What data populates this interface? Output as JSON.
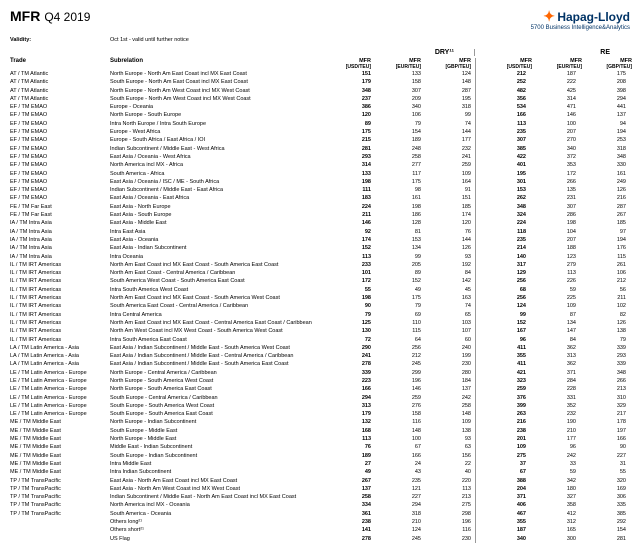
{
  "header": {
    "code": "MFR",
    "quarter": "Q4 2019",
    "company": "Hapag-Lloyd",
    "division": "5700 Business Intelligence&Analytics"
  },
  "validity": {
    "label": "Validity:",
    "text": "Oct 1st - valid until further notice"
  },
  "tableHeader": {
    "trade": "Trade",
    "subrelation": "Subrelation",
    "groups": [
      {
        "title": "DRY¹¹",
        "cols": [
          {
            "h": "MFR",
            "u": "[USD/TEU]"
          },
          {
            "h": "MFR",
            "u": "[EUR/TEU]"
          },
          {
            "h": "MFR",
            "u": "[GBP/TEU]"
          }
        ]
      },
      {
        "title": "RE",
        "cols": [
          {
            "h": "MFR",
            "u": "[USD/TEU]"
          },
          {
            "h": "MFR",
            "u": "[EUR/TEU]"
          },
          {
            "h": "MFR",
            "u": "[GBP/TEU]"
          }
        ]
      }
    ]
  },
  "rows": [
    {
      "t": "AT / TM Atlantic",
      "s": "North Europe - North Am East Coast incl MX East Coast",
      "d": [
        "151",
        "133",
        "124"
      ],
      "r": [
        "212",
        "187",
        "175"
      ]
    },
    {
      "t": "AT / TM Atlantic",
      "s": "South Europe - North Am East Coast incl MX East Coast",
      "d": [
        "179",
        "158",
        "148"
      ],
      "r": [
        "252",
        "222",
        "208"
      ]
    },
    {
      "t": "AT / TM Atlantic",
      "s": "North Europe - North Am West Coast incl MX West Coast",
      "d": [
        "348",
        "307",
        "287"
      ],
      "r": [
        "482",
        "425",
        "398"
      ]
    },
    {
      "t": "AT / TM Atlantic",
      "s": "South Europe - North Am West Coast incl MX West Coast",
      "d": [
        "237",
        "209",
        "195"
      ],
      "r": [
        "356",
        "314",
        "294"
      ]
    },
    {
      "t": "EF / TM EMAO",
      "s": "Europe - Oceania",
      "d": [
        "386",
        "340",
        "318"
      ],
      "r": [
        "534",
        "471",
        "441"
      ]
    },
    {
      "t": "EF / TM EMAO",
      "s": "North Europe - South Europe",
      "d": [
        "120",
        "106",
        "99"
      ],
      "r": [
        "166",
        "146",
        "137"
      ]
    },
    {
      "t": "EF / TM EMAO",
      "s": "Intra North Europe / Intra South Europe",
      "d": [
        "89",
        "79",
        "74"
      ],
      "r": [
        "113",
        "100",
        "94"
      ]
    },
    {
      "t": "EF / TM EMAO",
      "s": "Europe - West Africa",
      "d": [
        "175",
        "154",
        "144"
      ],
      "r": [
        "235",
        "207",
        "194"
      ]
    },
    {
      "t": "EF / TM EMAO",
      "s": "Europe - South Africa / East Africa / IOI",
      "d": [
        "215",
        "189",
        "177"
      ],
      "r": [
        "307",
        "270",
        "253"
      ]
    },
    {
      "t": "EF / TM EMAO",
      "s": "Indian Subcontinent / Middle East - West Africa",
      "d": [
        "281",
        "248",
        "232"
      ],
      "r": [
        "385",
        "340",
        "318"
      ]
    },
    {
      "t": "EF / TM EMAO",
      "s": "East Asia / Oceania - West Africa",
      "d": [
        "293",
        "258",
        "241"
      ],
      "r": [
        "422",
        "372",
        "348"
      ]
    },
    {
      "t": "EF / TM EMAO",
      "s": "North America incl MX - Africa",
      "d": [
        "314",
        "277",
        "259"
      ],
      "r": [
        "401",
        "353",
        "330"
      ]
    },
    {
      "t": "EF / TM EMAO",
      "s": "South America - Africa",
      "d": [
        "133",
        "117",
        "109"
      ],
      "r": [
        "195",
        "172",
        "161"
      ]
    },
    {
      "t": "EF / TM EMAO",
      "s": "East Asia / Oceania / ISC / ME - South Africa",
      "d": [
        "198",
        "175",
        "164"
      ],
      "r": [
        "301",
        "266",
        "249"
      ]
    },
    {
      "t": "EF / TM EMAO",
      "s": "Indian Subcontinent / Middle East - East Africa",
      "d": [
        "111",
        "98",
        "91"
      ],
      "r": [
        "153",
        "135",
        "126"
      ]
    },
    {
      "t": "EF / TM EMAO",
      "s": "East Asia / Oceania - East Africa",
      "d": [
        "183",
        "161",
        "151"
      ],
      "r": [
        "262",
        "231",
        "216"
      ]
    },
    {
      "t": "FE / TM Far East",
      "s": "East Asia - North Europe",
      "d": [
        "224",
        "198",
        "185"
      ],
      "r": [
        "348",
        "307",
        "287"
      ]
    },
    {
      "t": "FE / TM Far East",
      "s": "East Asia - South Europe",
      "d": [
        "211",
        "186",
        "174"
      ],
      "r": [
        "324",
        "286",
        "267"
      ]
    },
    {
      "t": "IA / TM Intra Asia",
      "s": "East Asia - Middle East",
      "d": [
        "146",
        "128",
        "120"
      ],
      "r": [
        "224",
        "198",
        "185"
      ]
    },
    {
      "t": "IA / TM Intra Asia",
      "s": "Intra East Asia",
      "d": [
        "92",
        "81",
        "76"
      ],
      "r": [
        "118",
        "104",
        "97"
      ]
    },
    {
      "t": "IA / TM Intra Asia",
      "s": "East Asia - Oceania",
      "d": [
        "174",
        "153",
        "144"
      ],
      "r": [
        "235",
        "207",
        "194"
      ]
    },
    {
      "t": "IA / TM Intra Asia",
      "s": "East Asia - Indian Subcontinent",
      "d": [
        "152",
        "134",
        "126"
      ],
      "r": [
        "214",
        "188",
        "176"
      ]
    },
    {
      "t": "IA / TM Intra Asia",
      "s": "Intra Oceania",
      "d": [
        "113",
        "99",
        "93"
      ],
      "r": [
        "140",
        "123",
        "115"
      ]
    },
    {
      "t": "IL / TM IRT Americas",
      "s": "North Am East Coast incl MX East Coast - South America East Coast",
      "d": [
        "233",
        "205",
        "192"
      ],
      "r": [
        "317",
        "279",
        "261"
      ]
    },
    {
      "t": "IL / TM IRT Americas",
      "s": "North Am East Coast - Central America / Caribbean",
      "d": [
        "101",
        "89",
        "84"
      ],
      "r": [
        "129",
        "113",
        "106"
      ]
    },
    {
      "t": "IL / TM IRT Americas",
      "s": "South America West Coast - South America East Coast",
      "d": [
        "172",
        "152",
        "142"
      ],
      "r": [
        "256",
        "226",
        "212"
      ]
    },
    {
      "t": "IL / TM IRT Americas",
      "s": "Intra South America West Coast",
      "d": [
        "55",
        "49",
        "45"
      ],
      "r": [
        "68",
        "59",
        "56"
      ]
    },
    {
      "t": "IL / TM IRT Americas",
      "s": "North Am East Coast incl MX East Coast - South America West Coast",
      "d": [
        "198",
        "175",
        "163"
      ],
      "r": [
        "256",
        "225",
        "211"
      ]
    },
    {
      "t": "IL / TM IRT Americas",
      "s": "South America East Coast - Central America / Caribbean",
      "d": [
        "90",
        "79",
        "74"
      ],
      "r": [
        "124",
        "109",
        "102"
      ]
    },
    {
      "t": "IL / TM IRT Americas",
      "s": "Intra Central America",
      "d": [
        "79",
        "69",
        "65"
      ],
      "r": [
        "99",
        "87",
        "82"
      ]
    },
    {
      "t": "IL / TM IRT Americas",
      "s": "North Am East Coast incl MX East Coast - Central America East Coast / Caribbean",
      "d": [
        "125",
        "110",
        "103"
      ],
      "r": [
        "152",
        "134",
        "126"
      ]
    },
    {
      "t": "IL / TM IRT Americas",
      "s": "North Am West Coast incl MX West Coast - South America West Coast",
      "d": [
        "130",
        "115",
        "107"
      ],
      "r": [
        "167",
        "147",
        "138"
      ]
    },
    {
      "t": "IL / TM IRT Americas",
      "s": "Intra South America East Coast",
      "d": [
        "72",
        "64",
        "60"
      ],
      "r": [
        "96",
        "84",
        "79"
      ]
    },
    {
      "t": "LA / TM Latin America - Asia",
      "s": "East Asia / Indian Subcontinent / Middle East - South America West Coast",
      "d": [
        "290",
        "256",
        "240"
      ],
      "r": [
        "411",
        "362",
        "339"
      ]
    },
    {
      "t": "LA / TM Latin America - Asia",
      "s": "East Asia / Indian Subcontinent / Middle East - Central America / Caribbean",
      "d": [
        "241",
        "212",
        "199"
      ],
      "r": [
        "355",
        "313",
        "293"
      ]
    },
    {
      "t": "LA / TM Latin America - Asia",
      "s": "East Asia / Indian Subcontinent / Middle East - South America East Coast",
      "d": [
        "278",
        "245",
        "230"
      ],
      "r": [
        "411",
        "362",
        "339"
      ]
    },
    {
      "t": "LE / TM Latin America - Europe",
      "s": "North Europe - Central America / Caribbean",
      "d": [
        "339",
        "299",
        "280"
      ],
      "r": [
        "421",
        "371",
        "348"
      ]
    },
    {
      "t": "LE / TM Latin America - Europe",
      "s": "North Europe - South America West Coast",
      "d": [
        "223",
        "196",
        "184"
      ],
      "r": [
        "323",
        "284",
        "266"
      ]
    },
    {
      "t": "LE / TM Latin America - Europe",
      "s": "North Europe - South America East Coast",
      "d": [
        "166",
        "146",
        "137"
      ],
      "r": [
        "259",
        "228",
        "213"
      ]
    },
    {
      "t": "LE / TM Latin America - Europe",
      "s": "South Europe - Central America / Caribbean",
      "d": [
        "294",
        "259",
        "242"
      ],
      "r": [
        "376",
        "331",
        "310"
      ]
    },
    {
      "t": "LE / TM Latin America - Europe",
      "s": "South Europe - South America West Coast",
      "d": [
        "313",
        "276",
        "258"
      ],
      "r": [
        "399",
        "352",
        "329"
      ]
    },
    {
      "t": "LE / TM Latin America - Europe",
      "s": "South Europe - South America East Coast",
      "d": [
        "179",
        "158",
        "148"
      ],
      "r": [
        "263",
        "232",
        "217"
      ]
    },
    {
      "t": "ME / TM Middle East",
      "s": "North Europe - Indian Subcontinent",
      "d": [
        "132",
        "116",
        "109"
      ],
      "r": [
        "216",
        "190",
        "178"
      ]
    },
    {
      "t": "ME / TM Middle East",
      "s": "South Europe - Middle East",
      "d": [
        "168",
        "148",
        "138"
      ],
      "r": [
        "238",
        "210",
        "197"
      ]
    },
    {
      "t": "ME / TM Middle East",
      "s": "North Europe - Middle East",
      "d": [
        "113",
        "100",
        "93"
      ],
      "r": [
        "201",
        "177",
        "166"
      ]
    },
    {
      "t": "ME / TM Middle East",
      "s": "Middle East - Indian Subcontinent",
      "d": [
        "76",
        "67",
        "63"
      ],
      "r": [
        "109",
        "96",
        "90"
      ]
    },
    {
      "t": "ME / TM Middle East",
      "s": "South Europe - Indian Subcontinent",
      "d": [
        "189",
        "166",
        "156"
      ],
      "r": [
        "275",
        "242",
        "227"
      ]
    },
    {
      "t": "ME / TM Middle East",
      "s": "Intra Middle East",
      "d": [
        "27",
        "24",
        "22"
      ],
      "r": [
        "37",
        "33",
        "31"
      ]
    },
    {
      "t": "ME / TM Middle East",
      "s": "Intra Indian Subcontinent",
      "d": [
        "49",
        "43",
        "40"
      ],
      "r": [
        "67",
        "59",
        "55"
      ]
    },
    {
      "t": "TP / TM TransPacific",
      "s": "East Asia - North Am East Coast incl MX East Coast",
      "d": [
        "267",
        "235",
        "220"
      ],
      "r": [
        "388",
        "342",
        "320"
      ]
    },
    {
      "t": "TP / TM TransPacific",
      "s": "East Asia - North Am West Coast incl MX West Coast",
      "d": [
        "137",
        "121",
        "113"
      ],
      "r": [
        "204",
        "180",
        "169"
      ]
    },
    {
      "t": "TP / TM TransPacific",
      "s": "Indian Subcontinent / Middle East - North Am East Coast incl MX East Coast",
      "d": [
        "258",
        "227",
        "213"
      ],
      "r": [
        "371",
        "327",
        "306"
      ]
    },
    {
      "t": "TP / TM TransPacific",
      "s": "North America incl MX - Oceania",
      "d": [
        "334",
        "294",
        "275"
      ],
      "r": [
        "406",
        "358",
        "335"
      ]
    },
    {
      "t": "TP / TM TransPacific",
      "s": "South America - Oceania",
      "d": [
        "361",
        "318",
        "298"
      ],
      "r": [
        "467",
        "412",
        "385"
      ]
    },
    {
      "t": "",
      "s": "Others long²¹",
      "d": [
        "238",
        "210",
        "196"
      ],
      "r": [
        "355",
        "312",
        "292"
      ]
    },
    {
      "t": "",
      "s": "Others short²¹",
      "d": [
        "141",
        "124",
        "116"
      ],
      "r": [
        "187",
        "165",
        "154"
      ]
    },
    {
      "t": "",
      "s": "US Flag",
      "d": [
        "278",
        "245",
        "230"
      ],
      "r": [
        "340",
        "300",
        "281"
      ]
    }
  ]
}
